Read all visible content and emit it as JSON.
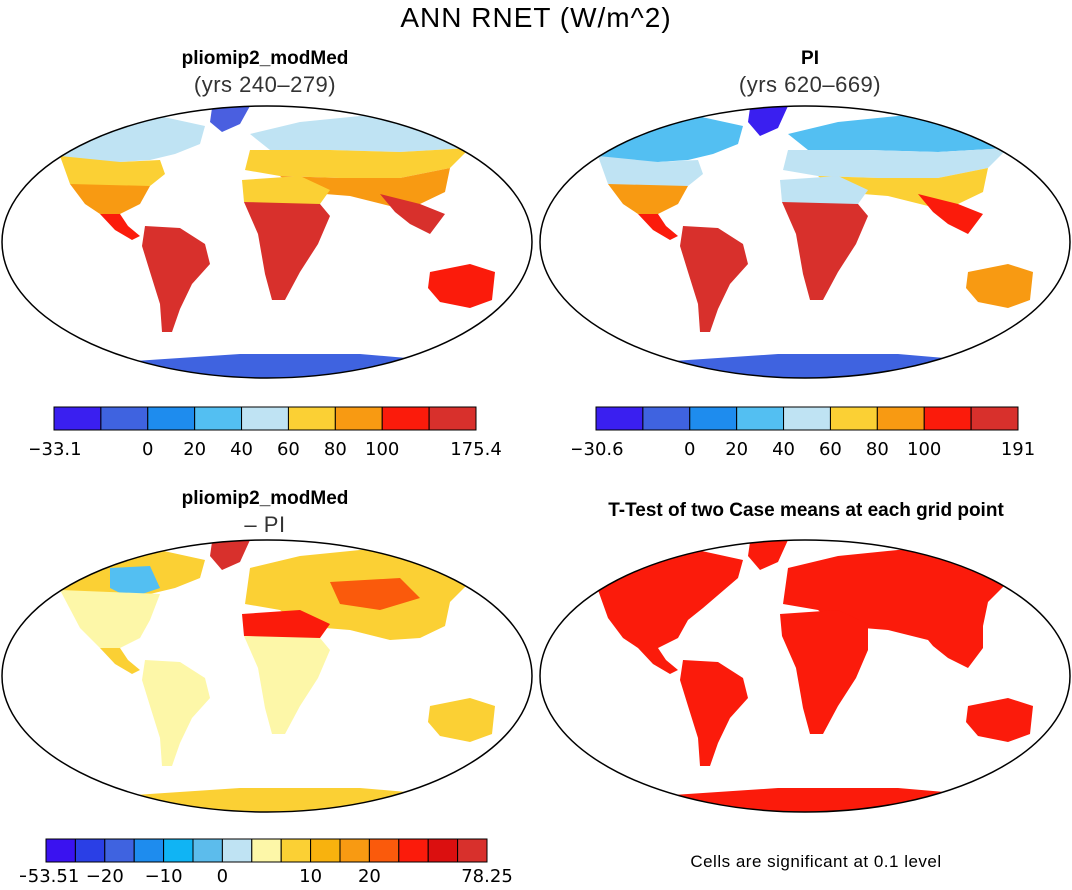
{
  "figure": {
    "title": "ANN RNET (W/m^2)"
  },
  "panels": {
    "p1": {
      "title": "pliomip2_modMed",
      "subtitle": "(yrs 240–279)"
    },
    "p2": {
      "title": "PI",
      "subtitle": "(yrs 620–669)"
    },
    "p3": {
      "title": "pliomip2_modMed",
      "subtitle": "– PI"
    },
    "p4": {
      "title": "T-Test of two Case means at each grid point"
    }
  },
  "colorbars": {
    "cb1": {
      "colors": [
        "#3a1ff0",
        "#3f63e0",
        "#1e8cee",
        "#53bff2",
        "#bfe3f3",
        "#fbd034",
        "#f89a12",
        "#fb1b0b",
        "#d8302c"
      ],
      "labels": [
        "−33.1",
        "0",
        "20",
        "40",
        "60",
        "80",
        "100",
        "175.4"
      ],
      "label_edges": [
        0,
        2,
        3,
        4,
        5,
        6,
        7,
        9
      ]
    },
    "cb2": {
      "colors": [
        "#3a1ff0",
        "#3f63e0",
        "#1e8cee",
        "#53bff2",
        "#bfe3f3",
        "#fbd034",
        "#f89a12",
        "#fb1b0b",
        "#d8302c"
      ],
      "labels": [
        "−30.6",
        "0",
        "20",
        "40",
        "60",
        "80",
        "100",
        "191"
      ],
      "label_edges": [
        0,
        2,
        3,
        4,
        5,
        6,
        7,
        9
      ]
    },
    "cb3": {
      "colors": [
        "#3a12f0",
        "#2a3fe6",
        "#3f63e0",
        "#1e8cee",
        "#10b4f4",
        "#5cbcec",
        "#bfe3f3",
        "#fdf7a8",
        "#fbd034",
        "#f8b20e",
        "#f89a12",
        "#fa5a0c",
        "#fb1b0b",
        "#db0f0f",
        "#d8302c"
      ],
      "labels": [
        "−53.51",
        "−20",
        "−10",
        "0",
        "10",
        "20",
        "78.25"
      ],
      "label_edges": [
        0,
        2,
        4,
        6,
        9,
        11,
        15
      ]
    }
  },
  "footnote": "Cells are significant at 0.1 level"
}
